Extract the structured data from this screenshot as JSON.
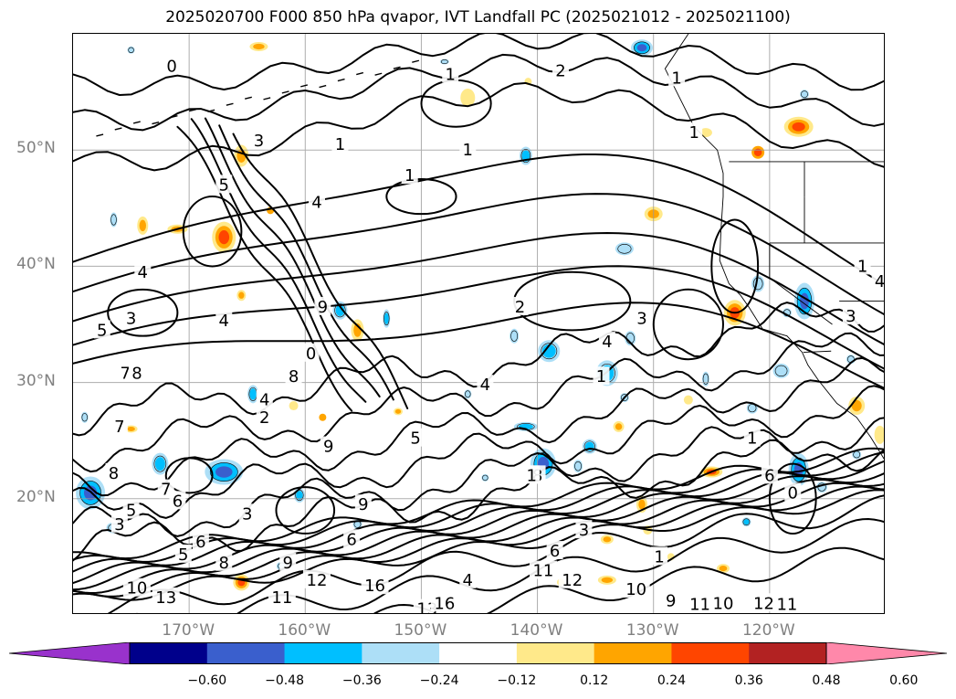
{
  "title": "2025020700 F000 850 hPa qvapor, IVT Landfall PC (2025021012 - 2025021100)",
  "axes": {
    "lat_labels": [
      {
        "text": "50°N",
        "lat": 50
      },
      {
        "text": "40°N",
        "lat": 40
      },
      {
        "text": "30°N",
        "lat": 30
      },
      {
        "text": "20°N",
        "lat": 20
      }
    ],
    "lon_labels": [
      {
        "text": "170°W",
        "lon": -170
      },
      {
        "text": "160°W",
        "lon": -160
      },
      {
        "text": "150°W",
        "lon": -150
      },
      {
        "text": "140°W",
        "lon": -140
      },
      {
        "text": "130°W",
        "lon": -130
      },
      {
        "text": "120°W",
        "lon": -120
      }
    ],
    "lon_range": [
      -180,
      -110
    ],
    "lat_range": [
      10,
      60
    ],
    "grid": true
  },
  "colorbar": {
    "extend": "both",
    "colors": [
      "#9932CC",
      "#00008B",
      "#3A5FCD",
      "#00BFFF",
      "#ADDFF7",
      "#FFFFFF",
      "#FFE98A",
      "#FFA500",
      "#FF4500",
      "#B22222",
      "#FF88AA"
    ],
    "ticks": [
      "−0.60",
      "−0.48",
      "−0.36",
      "−0.24",
      "−0.12",
      "0.12",
      "0.24",
      "0.36",
      "0.48",
      "0.60"
    ]
  },
  "contour_labels": [
    {
      "text": "1",
      "lon": -147.5,
      "lat": 56.5
    },
    {
      "text": "2",
      "lon": -138,
      "lat": 56.8
    },
    {
      "text": "1",
      "lon": -128,
      "lat": 56.2
    },
    {
      "text": "1",
      "lon": -126.5,
      "lat": 51.5
    },
    {
      "text": "0",
      "lon": -171.5,
      "lat": 57.2
    },
    {
      "text": "3",
      "lon": -164,
      "lat": 50.8
    },
    {
      "text": "1",
      "lon": -157,
      "lat": 50.5
    },
    {
      "text": "1",
      "lon": -151,
      "lat": 47.8
    },
    {
      "text": "1",
      "lon": -146,
      "lat": 50
    },
    {
      "text": "5",
      "lon": -167,
      "lat": 47
    },
    {
      "text": "4",
      "lon": -159,
      "lat": 45.5
    },
    {
      "text": "4",
      "lon": -174,
      "lat": 39.5
    },
    {
      "text": "3",
      "lon": -175,
      "lat": 35.5
    },
    {
      "text": "4",
      "lon": -167,
      "lat": 35.3
    },
    {
      "text": "2",
      "lon": -141.5,
      "lat": 36.5
    },
    {
      "text": "3",
      "lon": -131,
      "lat": 35.5
    },
    {
      "text": "4",
      "lon": -134,
      "lat": 33.5
    },
    {
      "text": "4",
      "lon": -144.5,
      "lat": 29.8
    },
    {
      "text": "1",
      "lon": -134.5,
      "lat": 30.5
    },
    {
      "text": "1",
      "lon": -112,
      "lat": 40
    },
    {
      "text": "4",
      "lon": -110.5,
      "lat": 38.7
    },
    {
      "text": "3",
      "lon": -113,
      "lat": 35.7
    },
    {
      "text": "7",
      "lon": -175.5,
      "lat": 30.8
    },
    {
      "text": "8",
      "lon": -174.5,
      "lat": 30.8
    },
    {
      "text": "7",
      "lon": -176,
      "lat": 26.2
    },
    {
      "text": "5",
      "lon": -177.5,
      "lat": 34.5
    },
    {
      "text": "9",
      "lon": -158,
      "lat": 24.5
    },
    {
      "text": "5",
      "lon": -150.5,
      "lat": 25.2
    },
    {
      "text": "8",
      "lon": -140,
      "lat": 22
    },
    {
      "text": "1",
      "lon": -140.5,
      "lat": 22
    },
    {
      "text": "7",
      "lon": -172,
      "lat": 20.8
    },
    {
      "text": "6",
      "lon": -171,
      "lat": 19.8
    },
    {
      "text": "8",
      "lon": -176.5,
      "lat": 22.2
    },
    {
      "text": "5",
      "lon": -175,
      "lat": 19
    },
    {
      "text": "3",
      "lon": -176,
      "lat": 17.8
    },
    {
      "text": "6",
      "lon": -169,
      "lat": 16.3
    },
    {
      "text": "5",
      "lon": -170.5,
      "lat": 15.2
    },
    {
      "text": "8",
      "lon": -167,
      "lat": 14.5
    },
    {
      "text": "9",
      "lon": -161.5,
      "lat": 14.5
    },
    {
      "text": "10",
      "lon": -174.5,
      "lat": 12.3
    },
    {
      "text": "13",
      "lon": -172,
      "lat": 11.5
    },
    {
      "text": "12",
      "lon": -159,
      "lat": 13
    },
    {
      "text": "11",
      "lon": -162,
      "lat": 11.5
    },
    {
      "text": "16",
      "lon": -154,
      "lat": 12.5
    },
    {
      "text": "13",
      "lon": -149.5,
      "lat": 10.5
    },
    {
      "text": "4",
      "lon": -146,
      "lat": 13
    },
    {
      "text": "16",
      "lon": -148,
      "lat": 11
    },
    {
      "text": "11",
      "lon": -139.5,
      "lat": 13.8
    },
    {
      "text": "12",
      "lon": -137,
      "lat": 13
    },
    {
      "text": "6",
      "lon": -138.5,
      "lat": 15.5
    },
    {
      "text": "3",
      "lon": -136,
      "lat": 17.3
    },
    {
      "text": "10",
      "lon": -131.5,
      "lat": 12.2
    },
    {
      "text": "1",
      "lon": -129.5,
      "lat": 15
    },
    {
      "text": "11",
      "lon": -126,
      "lat": 10.9
    },
    {
      "text": "10",
      "lon": -124,
      "lat": 11
    },
    {
      "text": "12",
      "lon": -120.5,
      "lat": 11
    },
    {
      "text": "11",
      "lon": -118.5,
      "lat": 10.9
    },
    {
      "text": "0",
      "lon": -118,
      "lat": 20.5
    },
    {
      "text": "1",
      "lon": -121.5,
      "lat": 25.2
    },
    {
      "text": "6",
      "lon": -120,
      "lat": 22
    },
    {
      "text": "9",
      "lon": -128.5,
      "lat": 11.2
    },
    {
      "text": "6",
      "lon": -156,
      "lat": 16.5
    },
    {
      "text": "9",
      "lon": -155,
      "lat": 19.5
    },
    {
      "text": "8",
      "lon": -161,
      "lat": 30.5
    },
    {
      "text": "9",
      "lon": -158.5,
      "lat": 36.5
    },
    {
      "text": "0",
      "lon": -159.5,
      "lat": 32.5
    },
    {
      "text": "4",
      "lon": -163.5,
      "lat": 28.5
    },
    {
      "text": "2",
      "lon": -163.5,
      "lat": 27
    },
    {
      "text": "3",
      "lon": -165,
      "lat": 18.7
    }
  ],
  "anomaly_patches": [
    {
      "lon": -164,
      "lat": 58.9,
      "rx": 10,
      "ry": 5,
      "colors": [
        "#FFE98A",
        "#FFA500"
      ]
    },
    {
      "lon": -131,
      "lat": 58.8,
      "rx": 12,
      "ry": 9,
      "colors": [
        "#ADDFF7",
        "#00BFFF",
        "#3A5FCD"
      ]
    },
    {
      "lon": -146,
      "lat": 54.5,
      "rx": 8,
      "ry": 10,
      "colors": [
        "#FFE98A"
      ]
    },
    {
      "lon": -140.8,
      "lat": 55.9,
      "rx": 4,
      "ry": 4,
      "colors": [
        "#FFE98A"
      ]
    },
    {
      "lon": -125.5,
      "lat": 51.5,
      "rx": 7,
      "ry": 5,
      "colors": [
        "#FFE98A"
      ]
    },
    {
      "lon": -117.5,
      "lat": 52,
      "rx": 16,
      "ry": 11,
      "colors": [
        "#FFE98A",
        "#FFA500",
        "#FF4500"
      ]
    },
    {
      "lon": -121,
      "lat": 49.8,
      "rx": 7,
      "ry": 7,
      "colors": [
        "#FFA500",
        "#FF4500"
      ]
    },
    {
      "lon": -117,
      "lat": 54.8,
      "rx": 5,
      "ry": 5,
      "colors": [
        "#ADDFF7"
      ]
    },
    {
      "lon": -165.5,
      "lat": 49.5,
      "rx": 8,
      "ry": 12,
      "colors": [
        "#FFE98A",
        "#FFA500"
      ]
    },
    {
      "lon": -141,
      "lat": 49.5,
      "rx": 7,
      "ry": 10,
      "colors": [
        "#ADDFF7",
        "#00BFFF"
      ]
    },
    {
      "lon": -130,
      "lat": 44.5,
      "rx": 10,
      "ry": 8,
      "colors": [
        "#FFE98A",
        "#FFA500"
      ]
    },
    {
      "lon": -167,
      "lat": 42.5,
      "rx": 13,
      "ry": 17,
      "colors": [
        "#FFE98A",
        "#FFA500",
        "#FF4500"
      ]
    },
    {
      "lon": -174,
      "lat": 43.5,
      "rx": 6,
      "ry": 10,
      "colors": [
        "#FFE98A",
        "#FFA500"
      ]
    },
    {
      "lon": -171,
      "lat": 43.2,
      "rx": 11,
      "ry": 5,
      "colors": [
        "#FFE98A",
        "#FFA500"
      ]
    },
    {
      "lon": -163,
      "lat": 44.8,
      "rx": 4,
      "ry": 4,
      "colors": [
        "#FFA500"
      ]
    },
    {
      "lon": -176.5,
      "lat": 44,
      "rx": 4,
      "ry": 8,
      "colors": [
        "#ADDFF7"
      ]
    },
    {
      "lon": -165.5,
      "lat": 37.5,
      "rx": 5,
      "ry": 6,
      "colors": [
        "#FFE98A",
        "#FFA500"
      ]
    },
    {
      "lon": -157,
      "lat": 36.2,
      "rx": 8,
      "ry": 10,
      "colors": [
        "#ADDFF7",
        "#00BFFF"
      ]
    },
    {
      "lon": -155.5,
      "lat": 34.5,
      "rx": 7,
      "ry": 12,
      "colors": [
        "#FFE98A",
        "#FFA500"
      ]
    },
    {
      "lon": -153,
      "lat": 35.5,
      "rx": 4,
      "ry": 10,
      "colors": [
        "#ADDFF7",
        "#00BFFF"
      ]
    },
    {
      "lon": -123,
      "lat": 36,
      "rx": 12,
      "ry": 14,
      "colors": [
        "#FFE98A",
        "#FFA500",
        "#FF4500"
      ]
    },
    {
      "lon": -121,
      "lat": 38.5,
      "rx": 7,
      "ry": 9,
      "colors": [
        "#ADDFF7"
      ]
    },
    {
      "lon": -117,
      "lat": 37,
      "rx": 11,
      "ry": 20,
      "colors": [
        "#ADDFF7",
        "#00BFFF",
        "#3A5FCD"
      ]
    },
    {
      "lon": -118.5,
      "lat": 36,
      "rx": 5,
      "ry": 5,
      "colors": [
        "#ADDFF7"
      ]
    },
    {
      "lon": -132.5,
      "lat": 41.5,
      "rx": 10,
      "ry": 7,
      "colors": [
        "#ADDFF7"
      ]
    },
    {
      "lon": -139,
      "lat": 32.7,
      "rx": 12,
      "ry": 12,
      "colors": [
        "#ADDFF7",
        "#00BFFF"
      ]
    },
    {
      "lon": -142,
      "lat": 34,
      "rx": 5,
      "ry": 8,
      "colors": [
        "#ADDFF7"
      ]
    },
    {
      "lon": -134,
      "lat": 30.8,
      "rx": 12,
      "ry": 14,
      "colors": [
        "#ADDFF7",
        "#00BFFF"
      ]
    },
    {
      "lon": -132,
      "lat": 33.8,
      "rx": 6,
      "ry": 8,
      "colors": [
        "#ADDFF7"
      ]
    },
    {
      "lon": -146,
      "lat": 29,
      "rx": 4,
      "ry": 5,
      "colors": [
        "#ADDFF7"
      ]
    },
    {
      "lon": -141,
      "lat": 26.2,
      "rx": 13,
      "ry": 5,
      "colors": [
        "#ADDFF7",
        "#00BFFF"
      ]
    },
    {
      "lon": -132.5,
      "lat": 28.7,
      "rx": 5,
      "ry": 5,
      "colors": [
        "#ADDFF7"
      ]
    },
    {
      "lon": -133,
      "lat": 26.2,
      "rx": 6,
      "ry": 6,
      "colors": [
        "#FFE98A",
        "#FFA500"
      ]
    },
    {
      "lon": -127,
      "lat": 28.5,
      "rx": 5,
      "ry": 5,
      "colors": [
        "#FFE98A"
      ]
    },
    {
      "lon": -125.5,
      "lat": 30.3,
      "rx": 4,
      "ry": 8,
      "colors": [
        "#ADDFF7"
      ]
    },
    {
      "lon": -119,
      "lat": 31,
      "rx": 9,
      "ry": 8,
      "colors": [
        "#ADDFF7"
      ]
    },
    {
      "lon": -121.5,
      "lat": 27.8,
      "rx": 6,
      "ry": 6,
      "colors": [
        "#ADDFF7"
      ]
    },
    {
      "lon": -112.5,
      "lat": 28,
      "rx": 9,
      "ry": 10,
      "colors": [
        "#FFE98A",
        "#FFA500"
      ]
    },
    {
      "lon": -110.5,
      "lat": 25.5,
      "rx": 6,
      "ry": 10,
      "colors": [
        "#FFE98A"
      ]
    },
    {
      "lon": -113,
      "lat": 32,
      "rx": 5,
      "ry": 5,
      "colors": [
        "#ADDFF7"
      ]
    },
    {
      "lon": -139.5,
      "lat": 23,
      "rx": 14,
      "ry": 17,
      "colors": [
        "#ADDFF7",
        "#00BFFF",
        "#3A5FCD"
      ]
    },
    {
      "lon": -136.5,
      "lat": 22.8,
      "rx": 5,
      "ry": 7,
      "colors": [
        "#ADDFF7"
      ]
    },
    {
      "lon": -135.5,
      "lat": 24.5,
      "rx": 8,
      "ry": 8,
      "colors": [
        "#ADDFF7",
        "#00BFFF"
      ]
    },
    {
      "lon": -144.5,
      "lat": 21.8,
      "rx": 4,
      "ry": 4,
      "colors": [
        "#ADDFF7"
      ]
    },
    {
      "lon": -125,
      "lat": 22.3,
      "rx": 12,
      "ry": 6,
      "colors": [
        "#FFE98A",
        "#FFA500",
        "#FF4500"
      ]
    },
    {
      "lon": -117.5,
      "lat": 22.5,
      "rx": 11,
      "ry": 18,
      "colors": [
        "#ADDFF7",
        "#00BFFF",
        "#3A5FCD"
      ]
    },
    {
      "lon": -115.5,
      "lat": 21,
      "rx": 6,
      "ry": 6,
      "colors": [
        "#ADDFF7"
      ]
    },
    {
      "lon": -112.5,
      "lat": 23.8,
      "rx": 5,
      "ry": 5,
      "colors": [
        "#ADDFF7"
      ]
    },
    {
      "lon": -131,
      "lat": 19.5,
      "rx": 6,
      "ry": 9,
      "colors": [
        "#FFE98A",
        "#FFA500"
      ]
    },
    {
      "lon": -130.5,
      "lat": 17.3,
      "rx": 5,
      "ry": 5,
      "colors": [
        "#FFE98A"
      ]
    },
    {
      "lon": -122,
      "lat": 18,
      "rx": 5,
      "ry": 5,
      "colors": [
        "#ADDFF7",
        "#00BFFF"
      ]
    },
    {
      "lon": -134,
      "lat": 16.5,
      "rx": 7,
      "ry": 5,
      "colors": [
        "#FFE98A",
        "#FFA500"
      ]
    },
    {
      "lon": -128.5,
      "lat": 15,
      "rx": 4,
      "ry": 4,
      "colors": [
        "#FFE98A"
      ]
    },
    {
      "lon": -124,
      "lat": 14,
      "rx": 7,
      "ry": 5,
      "colors": [
        "#FFE98A",
        "#FFA500"
      ]
    },
    {
      "lon": -138,
      "lat": 12.8,
      "rx": 4,
      "ry": 4,
      "colors": [
        "#FFE98A"
      ]
    },
    {
      "lon": -134,
      "lat": 13,
      "rx": 10,
      "ry": 5,
      "colors": [
        "#FFE98A",
        "#FFA500"
      ]
    },
    {
      "lon": -162,
      "lat": 14.2,
      "rx": 6,
      "ry": 5,
      "colors": [
        "#ADDFF7"
      ]
    },
    {
      "lon": -167,
      "lat": 22.3,
      "rx": 21,
      "ry": 14,
      "colors": [
        "#ADDFF7",
        "#00BFFF",
        "#3A5FCD"
      ]
    },
    {
      "lon": -172.5,
      "lat": 23,
      "rx": 9,
      "ry": 12,
      "colors": [
        "#ADDFF7",
        "#00BFFF"
      ]
    },
    {
      "lon": -178.5,
      "lat": 20.5,
      "rx": 16,
      "ry": 18,
      "colors": [
        "#ADDFF7",
        "#00BFFF",
        "#3A5FCD"
      ]
    },
    {
      "lon": -176.5,
      "lat": 17.5,
      "rx": 8,
      "ry": 6,
      "colors": [
        "#ADDFF7"
      ]
    },
    {
      "lon": -164.5,
      "lat": 29,
      "rx": 6,
      "ry": 10,
      "colors": [
        "#ADDFF7",
        "#00BFFF"
      ]
    },
    {
      "lon": -161,
      "lat": 28,
      "rx": 5,
      "ry": 5,
      "colors": [
        "#FFE98A"
      ]
    },
    {
      "lon": -158.5,
      "lat": 27,
      "rx": 4,
      "ry": 4,
      "colors": [
        "#FFA500"
      ]
    },
    {
      "lon": -152,
      "lat": 27.5,
      "rx": 5,
      "ry": 4,
      "colors": [
        "#FFE98A",
        "#FFA500"
      ]
    },
    {
      "lon": -179,
      "lat": 27,
      "rx": 4,
      "ry": 6,
      "colors": [
        "#ADDFF7"
      ]
    },
    {
      "lon": -175,
      "lat": 26,
      "rx": 7,
      "ry": 4,
      "colors": [
        "#FFE98A",
        "#FFA500"
      ]
    },
    {
      "lon": -160.5,
      "lat": 20.3,
      "rx": 6,
      "ry": 8,
      "colors": [
        "#ADDFF7",
        "#00BFFF"
      ]
    },
    {
      "lon": -165.5,
      "lat": 12.8,
      "rx": 9,
      "ry": 9,
      "colors": [
        "#FFE98A",
        "#FFA500",
        "#FF4500"
      ]
    },
    {
      "lon": -175,
      "lat": 58.6,
      "rx": 4,
      "ry": 4,
      "colors": [
        "#ADDFF7"
      ]
    },
    {
      "lon": -164,
      "lat": 58.9,
      "rx": 3,
      "ry": 3,
      "colors": [
        "#FFA500"
      ]
    },
    {
      "lon": -148,
      "lat": 57.6,
      "rx": 5,
      "ry": 3,
      "colors": [
        "#ADDFF7"
      ]
    },
    {
      "lon": -155.5,
      "lat": 17.8,
      "rx": 5,
      "ry": 5,
      "colors": [
        "#ADDFF7"
      ]
    }
  ]
}
